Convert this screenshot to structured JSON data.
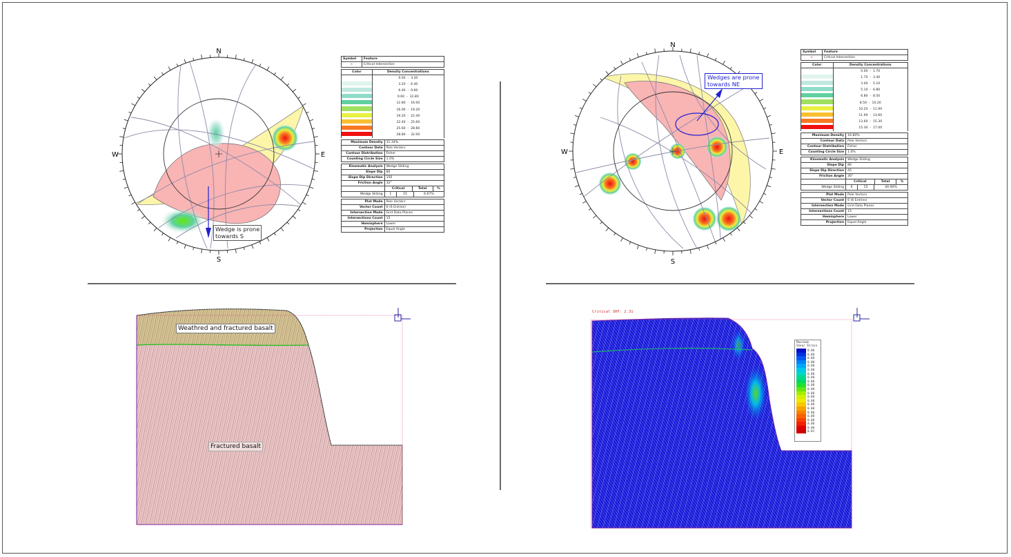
{
  "stereonets": [
    {
      "compass": {
        "n": "N",
        "e": "E",
        "s": "S",
        "w": "W"
      },
      "callout": "Wedge is prone\ntowards S",
      "legend": {
        "symbol_header": [
          "Symbol",
          "Feature"
        ],
        "symbol_row": {
          "symbol": "×",
          "feature": "Critical Intersection"
        },
        "density_header": [
          "Color",
          "Density Concentrations"
        ],
        "density_ranges": [
          [
            "0.00",
            "3.20"
          ],
          [
            "3.20",
            "6.40"
          ],
          [
            "6.40",
            "9.60"
          ],
          [
            "9.60",
            "12.80"
          ],
          [
            "12.80",
            "16.00"
          ],
          [
            "16.00",
            "19.20"
          ],
          [
            "19.20",
            "22.40"
          ],
          [
            "22.40",
            "25.60"
          ],
          [
            "25.60",
            "28.80"
          ],
          [
            "28.80",
            "32.00"
          ]
        ],
        "contour": [
          {
            "label": "Maximum Density",
            "value": "31.34%"
          },
          {
            "label": "Contour Data",
            "value": "Pole Vectors"
          },
          {
            "label": "Contour Distribution",
            "value": "Fisher"
          },
          {
            "label": "Counting Circle Size",
            "value": "1.0%"
          }
        ],
        "kinematic": [
          {
            "label": "Kinematic Analysis",
            "value": "Wedge Sliding"
          },
          {
            "label": "Slope Dip",
            "value": "80"
          },
          {
            "label": "Slope Dip Direction",
            "value": "150"
          },
          {
            "label": "Friction Angle",
            "value": "32°"
          }
        ],
        "result_header": [
          "Critical",
          "Total",
          "%"
        ],
        "result_row": {
          "name": "Wedge Sliding",
          "critical": "1",
          "total": "15",
          "pct": "6.67%"
        },
        "plot": [
          {
            "label": "Plot Mode",
            "value": "Pole Vectors"
          },
          {
            "label": "Vector Count",
            "value": "6 (6 Entries)"
          },
          {
            "label": "Intersection Mode",
            "value": "Grid Data Planes"
          },
          {
            "label": "Intersections Count",
            "value": "15"
          },
          {
            "label": "Hemisphere",
            "value": "Lower"
          },
          {
            "label": "Projection",
            "value": "Equal Angle"
          }
        ]
      }
    },
    {
      "compass": {
        "n": "N",
        "e": "E",
        "s": "S",
        "w": "W"
      },
      "callout": "Wedges are prone\ntowards NE",
      "legend": {
        "symbol_header": [
          "Symbol",
          "Feature"
        ],
        "symbol_row": {
          "symbol": "×",
          "feature": "Critical Intersection"
        },
        "density_header": [
          "Color",
          "Density Concentrations"
        ],
        "density_ranges": [
          [
            "0.00",
            "1.70"
          ],
          [
            "1.70",
            "3.40"
          ],
          [
            "3.40",
            "5.10"
          ],
          [
            "5.10",
            "6.80"
          ],
          [
            "6.80",
            "8.50"
          ],
          [
            "8.50",
            "10.20"
          ],
          [
            "10.20",
            "11.90"
          ],
          [
            "11.90",
            "13.60"
          ],
          [
            "13.60",
            "15.30"
          ],
          [
            "15.30",
            "17.00"
          ]
        ],
        "contour": [
          {
            "label": "Maximum Density",
            "value": "16.80%"
          },
          {
            "label": "Contour Data",
            "value": "Pole Vectors"
          },
          {
            "label": "Contour Distribution",
            "value": "Fisher"
          },
          {
            "label": "Counting Circle Size",
            "value": "1.0%"
          }
        ],
        "kinematic": [
          {
            "label": "Kinematic Analysis",
            "value": "Wedge Sliding"
          },
          {
            "label": "Slope Dip",
            "value": "80"
          },
          {
            "label": "Slope Dip Direction",
            "value": "45"
          },
          {
            "label": "Friction Angle",
            "value": "30°"
          }
        ],
        "result_header": [
          "Critical",
          "Total",
          "%"
        ],
        "result_row": {
          "name": "Wedge Sliding",
          "critical": "6",
          "total": "15",
          "pct": "40.00%"
        },
        "plot": [
          {
            "label": "Plot Mode",
            "value": "Pole Vectors"
          },
          {
            "label": "Vector Count",
            "value": "6 (6 Entries)"
          },
          {
            "label": "Intersection Mode",
            "value": "Grid Data Planes"
          },
          {
            "label": "Intersections Count",
            "value": "15"
          },
          {
            "label": "Hemisphere",
            "value": "Lower"
          },
          {
            "label": "Projection",
            "value": "Equal Angle"
          }
        ]
      }
    }
  ],
  "density_colors": [
    "#ffffff",
    "#e0f4ee",
    "#bfe8e0",
    "#8fdcc8",
    "#5fd0a0",
    "#9fe060",
    "#e8f040",
    "#f8c030",
    "#f87820",
    "#f01010"
  ],
  "slope_model": {
    "labels": {
      "upper_unit": "Weathred and fractured basalt",
      "lower_unit": "Fractured basalt"
    }
  },
  "fem_model": {
    "srf_label": "Critical SRF: 2.31",
    "legend_title": [
      "Maximum",
      "Shear Strain"
    ],
    "legend_values": [
      "0.00",
      "0.00",
      "0.00",
      "0.00",
      "0.00",
      "0.00",
      "0.00",
      "0.00",
      "0.00",
      "0.00",
      "0.00",
      "0.00",
      "0.00",
      "0.00",
      "0.00",
      "0.00",
      "0.00",
      "0.00",
      "0.00",
      "0.00",
      "0.00",
      "0.01"
    ],
    "legend_colors": [
      "#0010c8",
      "#0030e0",
      "#0058f0",
      "#0080f8",
      "#00a8f8",
      "#00c8e8",
      "#00d8c0",
      "#00d890",
      "#00d860",
      "#20e030",
      "#60e810",
      "#a0f000",
      "#d0f000",
      "#f0e800",
      "#f8c800",
      "#f8a000",
      "#f88000",
      "#f86000",
      "#f84000",
      "#f02000",
      "#e00000",
      "#d00000"
    ]
  }
}
